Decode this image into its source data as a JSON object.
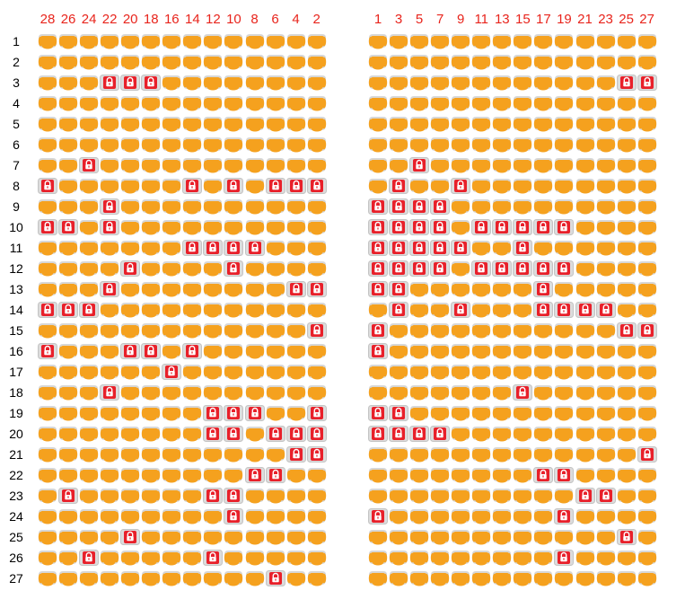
{
  "left_section": {
    "columns": [
      "28",
      "26",
      "24",
      "22",
      "20",
      "18",
      "16",
      "14",
      "12",
      "10",
      "8",
      "6",
      "4",
      "2"
    ]
  },
  "right_section": {
    "columns": [
      "1",
      "3",
      "5",
      "7",
      "9",
      "11",
      "13",
      "15",
      "17",
      "19",
      "21",
      "23",
      "25",
      "27"
    ]
  },
  "rows": [
    "1",
    "2",
    "3",
    "4",
    "5",
    "6",
    "7",
    "8",
    "9",
    "10",
    "11",
    "12",
    "13",
    "14",
    "15",
    "16",
    "17",
    "18",
    "19",
    "20",
    "21",
    "22",
    "23",
    "24",
    "25",
    "26",
    "27"
  ],
  "legend": {
    "available_icon": "seat-available-icon",
    "locked_icon": "seat-locked-icon"
  },
  "colors": {
    "available_seat": "#f5a11e",
    "locked_seat": "#e8202a",
    "seat_frame": "#d7d7d7",
    "column_number": "#e8241c",
    "row_number": "#000000"
  },
  "locked_seats": {
    "left": [
      [
        "3",
        "22"
      ],
      [
        "3",
        "20"
      ],
      [
        "3",
        "18"
      ],
      [
        "7",
        "24"
      ],
      [
        "8",
        "28"
      ],
      [
        "8",
        "14"
      ],
      [
        "8",
        "10"
      ],
      [
        "8",
        "6"
      ],
      [
        "8",
        "4"
      ],
      [
        "8",
        "2"
      ],
      [
        "9",
        "22"
      ],
      [
        "10",
        "28"
      ],
      [
        "10",
        "26"
      ],
      [
        "10",
        "22"
      ],
      [
        "11",
        "14"
      ],
      [
        "11",
        "12"
      ],
      [
        "11",
        "10"
      ],
      [
        "11",
        "8"
      ],
      [
        "12",
        "20"
      ],
      [
        "12",
        "10"
      ],
      [
        "13",
        "22"
      ],
      [
        "13",
        "4"
      ],
      [
        "13",
        "2"
      ],
      [
        "14",
        "28"
      ],
      [
        "14",
        "26"
      ],
      [
        "14",
        "24"
      ],
      [
        "15",
        "2"
      ],
      [
        "16",
        "28"
      ],
      [
        "16",
        "20"
      ],
      [
        "16",
        "18"
      ],
      [
        "16",
        "14"
      ],
      [
        "17",
        "16"
      ],
      [
        "18",
        "22"
      ],
      [
        "19",
        "12"
      ],
      [
        "19",
        "10"
      ],
      [
        "19",
        "8"
      ],
      [
        "19",
        "2"
      ],
      [
        "20",
        "12"
      ],
      [
        "20",
        "10"
      ],
      [
        "20",
        "6"
      ],
      [
        "20",
        "4"
      ],
      [
        "20",
        "2"
      ],
      [
        "21",
        "4"
      ],
      [
        "21",
        "2"
      ],
      [
        "22",
        "8"
      ],
      [
        "22",
        "6"
      ],
      [
        "23",
        "26"
      ],
      [
        "23",
        "12"
      ],
      [
        "23",
        "10"
      ],
      [
        "24",
        "10"
      ],
      [
        "25",
        "20"
      ],
      [
        "26",
        "24"
      ],
      [
        "26",
        "12"
      ],
      [
        "27",
        "6"
      ]
    ],
    "right": [
      [
        "3",
        "25"
      ],
      [
        "3",
        "27"
      ],
      [
        "7",
        "5"
      ],
      [
        "8",
        "3"
      ],
      [
        "8",
        "9"
      ],
      [
        "9",
        "1"
      ],
      [
        "9",
        "3"
      ],
      [
        "9",
        "5"
      ],
      [
        "9",
        "7"
      ],
      [
        "10",
        "1"
      ],
      [
        "10",
        "3"
      ],
      [
        "10",
        "5"
      ],
      [
        "10",
        "7"
      ],
      [
        "10",
        "11"
      ],
      [
        "10",
        "13"
      ],
      [
        "10",
        "15"
      ],
      [
        "10",
        "17"
      ],
      [
        "10",
        "19"
      ],
      [
        "11",
        "1"
      ],
      [
        "11",
        "3"
      ],
      [
        "11",
        "5"
      ],
      [
        "11",
        "7"
      ],
      [
        "11",
        "9"
      ],
      [
        "11",
        "15"
      ],
      [
        "12",
        "1"
      ],
      [
        "12",
        "3"
      ],
      [
        "12",
        "5"
      ],
      [
        "12",
        "7"
      ],
      [
        "12",
        "11"
      ],
      [
        "12",
        "13"
      ],
      [
        "12",
        "15"
      ],
      [
        "12",
        "17"
      ],
      [
        "12",
        "19"
      ],
      [
        "13",
        "1"
      ],
      [
        "13",
        "3"
      ],
      [
        "13",
        "17"
      ],
      [
        "14",
        "3"
      ],
      [
        "14",
        "9"
      ],
      [
        "14",
        "17"
      ],
      [
        "14",
        "19"
      ],
      [
        "14",
        "21"
      ],
      [
        "14",
        "23"
      ],
      [
        "15",
        "1"
      ],
      [
        "15",
        "25"
      ],
      [
        "15",
        "27"
      ],
      [
        "16",
        "1"
      ],
      [
        "18",
        "15"
      ],
      [
        "19",
        "1"
      ],
      [
        "19",
        "3"
      ],
      [
        "20",
        "1"
      ],
      [
        "20",
        "3"
      ],
      [
        "20",
        "5"
      ],
      [
        "20",
        "7"
      ],
      [
        "21",
        "27"
      ],
      [
        "22",
        "17"
      ],
      [
        "22",
        "19"
      ],
      [
        "23",
        "21"
      ],
      [
        "23",
        "23"
      ],
      [
        "24",
        "1"
      ],
      [
        "24",
        "19"
      ],
      [
        "25",
        "25"
      ],
      [
        "26",
        "19"
      ]
    ]
  }
}
